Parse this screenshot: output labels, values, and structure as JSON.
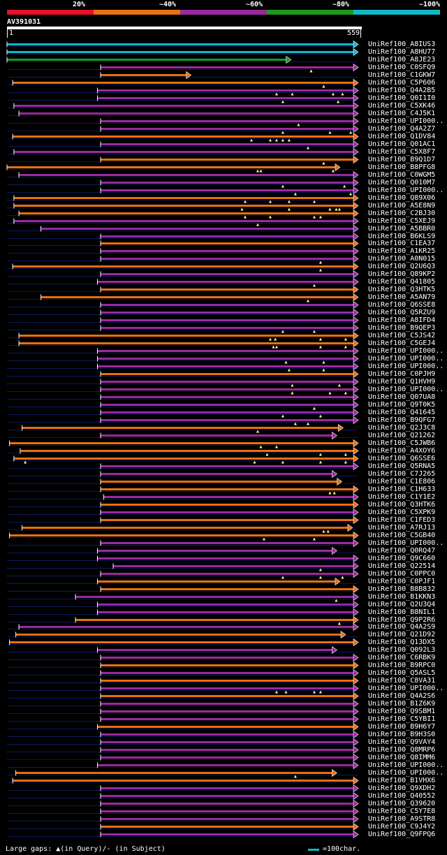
{
  "legend": {
    "items": [
      {
        "label": "20%",
        "color": "#e8102a"
      },
      {
        "label": "~40%",
        "color": "#e87010"
      },
      {
        "label": "~60%",
        "color": "#9a2a9e"
      },
      {
        "label": "~80%",
        "color": "#1a9a20"
      },
      {
        "label": "~100%",
        "color": "#10b8c4"
      }
    ]
  },
  "query": {
    "name": "AV391031",
    "start_label": "1",
    "end_label": "559"
  },
  "footer": {
    "text": "Large gaps: ▲(in Query)/- (in Subject)",
    "scale_text": "=100char."
  },
  "chart_data": {
    "type": "alignment-overview",
    "title": "AV391031",
    "query_length": 559,
    "hits": [
      {
        "name": "UniRef100_A8IUS3",
        "start": 1,
        "end": 559,
        "color": "#10b8c4",
        "marks": []
      },
      {
        "name": "UniRef100_A8HU77",
        "start": 1,
        "end": 559,
        "color": "#10b8c4",
        "marks": []
      },
      {
        "name": "UniRef100_A8JE23",
        "start": 1,
        "end": 452,
        "color": "#1a9a20",
        "marks": []
      },
      {
        "name": "UniRef100_C0SFQ9",
        "start": 150,
        "end": 559,
        "color": "#9a2a9e",
        "marks": [
          485
        ]
      },
      {
        "name": "UniRef100_C1GKW7",
        "start": 150,
        "end": 293,
        "color": "#e87010",
        "marks": []
      },
      {
        "name": "UniRef100_C5P606",
        "start": 10,
        "end": 559,
        "color": "#e87010",
        "marks": [
          505
        ]
      },
      {
        "name": "UniRef100_Q4A2B5",
        "start": 145,
        "end": 559,
        "color": "#9a2a9e",
        "marks": [
          430,
          455,
          520,
          535
        ]
      },
      {
        "name": "UniRef100_Q0I1I0",
        "start": 145,
        "end": 559,
        "color": "#9a2a9e",
        "marks": [
          440,
          528
        ]
      },
      {
        "name": "UniRef100_C5XK46",
        "start": 12,
        "end": 559,
        "color": "#9a2a9e",
        "marks": []
      },
      {
        "name": "UniRef100_C4J5K1",
        "start": 20,
        "end": 559,
        "color": "#9a2a9e",
        "marks": []
      },
      {
        "name": "UniRef100_UPI000..",
        "start": 150,
        "end": 559,
        "color": "#9a2a9e",
        "marks": [
          465
        ]
      },
      {
        "name": "UniRef100_Q4A2Z7",
        "start": 150,
        "end": 559,
        "color": "#9a2a9e",
        "marks": [
          440,
          515,
          548
        ]
      },
      {
        "name": "UniRef100_Q1DV84",
        "start": 10,
        "end": 559,
        "color": "#e87010",
        "marks": [
          390,
          420,
          430,
          440,
          450
        ]
      },
      {
        "name": "UniRef100_Q01AC1",
        "start": 150,
        "end": 559,
        "color": "#9a2a9e",
        "marks": [
          480
        ]
      },
      {
        "name": "UniRef100_C5X8F7",
        "start": 12,
        "end": 559,
        "color": "#9a2a9e",
        "marks": []
      },
      {
        "name": "UniRef100_B9Q1D7",
        "start": 150,
        "end": 559,
        "color": "#e87010",
        "marks": [
          505
        ]
      },
      {
        "name": "UniRef100_B8PFG8",
        "start": 1,
        "end": 530,
        "color": "#e87010",
        "marks": [
          400,
          405,
          520
        ]
      },
      {
        "name": "UniRef100_C0WGM5",
        "start": 20,
        "end": 559,
        "color": "#9a2a9e",
        "marks": []
      },
      {
        "name": "UniRef100_Q010M7",
        "start": 150,
        "end": 559,
        "color": "#9a2a9e",
        "marks": [
          440,
          538
        ]
      },
      {
        "name": "UniRef100_UPI000..",
        "start": 150,
        "end": 559,
        "color": "#9a2a9e",
        "marks": [
          460,
          548
        ]
      },
      {
        "name": "UniRef100_Q89X06",
        "start": 12,
        "end": 559,
        "color": "#e87010",
        "marks": [
          380,
          420,
          450,
          490
        ]
      },
      {
        "name": "UniRef100_A5E8N9",
        "start": 12,
        "end": 559,
        "color": "#e87010",
        "marks": [
          375,
          450,
          515,
          525,
          530
        ]
      },
      {
        "name": "UniRef100_C2BJ30",
        "start": 20,
        "end": 559,
        "color": "#e87010",
        "marks": [
          380,
          420,
          490,
          500
        ]
      },
      {
        "name": "UniRef100_C5XEJ9",
        "start": 12,
        "end": 559,
        "color": "#9a2a9e",
        "marks": [
          400
        ]
      },
      {
        "name": "UniRef100_A5BBR0",
        "start": 55,
        "end": 559,
        "color": "#9a2a9e",
        "marks": []
      },
      {
        "name": "UniRef100_B6KLS9",
        "start": 150,
        "end": 559,
        "color": "#9a2a9e",
        "marks": []
      },
      {
        "name": "UniRef100_C1EA37",
        "start": 150,
        "end": 559,
        "color": "#e87010",
        "marks": []
      },
      {
        "name": "UniRef100_A1KR25",
        "start": 150,
        "end": 559,
        "color": "#9a2a9e",
        "marks": []
      },
      {
        "name": "UniRef100_A0N015",
        "start": 150,
        "end": 559,
        "color": "#9a2a9e",
        "marks": [
          500
        ]
      },
      {
        "name": "UniRef100_Q2U6Q3",
        "start": 10,
        "end": 559,
        "color": "#e87010",
        "marks": [
          500
        ]
      },
      {
        "name": "UniRef100_Q89KP2",
        "start": 150,
        "end": 559,
        "color": "#9a2a9e",
        "marks": []
      },
      {
        "name": "UniRef100_Q41805",
        "start": 145,
        "end": 559,
        "color": "#9a2a9e",
        "marks": [
          490
        ]
      },
      {
        "name": "UniRef100_Q3HTK5",
        "start": 150,
        "end": 559,
        "color": "#e87010",
        "marks": []
      },
      {
        "name": "UniRef100_A5AN79",
        "start": 55,
        "end": 559,
        "color": "#e87010",
        "marks": [
          480
        ]
      },
      {
        "name": "UniRef100_Q6SSE8",
        "start": 150,
        "end": 559,
        "color": "#9a2a9e",
        "marks": []
      },
      {
        "name": "UniRef100_Q5RZU9",
        "start": 150,
        "end": 559,
        "color": "#9a2a9e",
        "marks": []
      },
      {
        "name": "UniRef100_A8IFD4",
        "start": 150,
        "end": 559,
        "color": "#9a2a9e",
        "marks": []
      },
      {
        "name": "UniRef100_B9QEP3",
        "start": 150,
        "end": 559,
        "color": "#9a2a9e",
        "marks": [
          440,
          490
        ]
      },
      {
        "name": "UniRef100_C5JS42",
        "start": 20,
        "end": 559,
        "color": "#e87010",
        "marks": [
          420,
          428,
          500,
          540
        ]
      },
      {
        "name": "UniRef100_C5GEJ4",
        "start": 20,
        "end": 559,
        "color": "#e87010",
        "marks": [
          425,
          430,
          500,
          540
        ]
      },
      {
        "name": "UniRef100_UPI000..",
        "start": 145,
        "end": 559,
        "color": "#9a2a9e",
        "marks": []
      },
      {
        "name": "UniRef100_UPI000..",
        "start": 145,
        "end": 559,
        "color": "#9a2a9e",
        "marks": [
          445,
          505
        ]
      },
      {
        "name": "UniRef100_UPI000..",
        "start": 145,
        "end": 559,
        "color": "#9a2a9e",
        "marks": [
          450,
          505
        ]
      },
      {
        "name": "UniRef100_C0PJH9",
        "start": 150,
        "end": 559,
        "color": "#e87010",
        "marks": []
      },
      {
        "name": "UniRef100_Q1HVH9",
        "start": 150,
        "end": 559,
        "color": "#9a2a9e",
        "marks": [
          455,
          530
        ]
      },
      {
        "name": "UniRef100_UPI000..",
        "start": 150,
        "end": 559,
        "color": "#9a2a9e",
        "marks": [
          455,
          515,
          540
        ]
      },
      {
        "name": "UniRef100_Q07UA8",
        "start": 150,
        "end": 559,
        "color": "#9a2a9e",
        "marks": []
      },
      {
        "name": "UniRef100_Q9T0K5",
        "start": 150,
        "end": 559,
        "color": "#9a2a9e",
        "marks": [
          490
        ]
      },
      {
        "name": "UniRef100_Q41645",
        "start": 150,
        "end": 559,
        "color": "#9a2a9e",
        "marks": [
          440,
          500
        ]
      },
      {
        "name": "UniRef100_B9QFG7",
        "start": 150,
        "end": 559,
        "color": "#9a2a9e",
        "marks": [
          460,
          480
        ]
      },
      {
        "name": "UniRef100_Q2J3C8",
        "start": 25,
        "end": 535,
        "color": "#e87010",
        "marks": [
          400
        ]
      },
      {
        "name": "UniRef100_Q21262",
        "start": 150,
        "end": 525,
        "color": "#9a2a9e",
        "marks": []
      },
      {
        "name": "UniRef100_C5JWB6",
        "start": 5,
        "end": 559,
        "color": "#e87010",
        "marks": [
          405,
          430
        ]
      },
      {
        "name": "UniRef100_A4XOY6",
        "start": 22,
        "end": 559,
        "color": "#e87010",
        "marks": [
          415,
          500,
          540
        ]
      },
      {
        "name": "UniRef100_Q6SSE6",
        "start": 12,
        "end": 559,
        "color": "#e87010",
        "marks": [
          30,
          395,
          440,
          500,
          540
        ]
      },
      {
        "name": "UniRef100_Q5RNA5",
        "start": 150,
        "end": 559,
        "color": "#9a2a9e",
        "marks": []
      },
      {
        "name": "UniRef100_C7J265",
        "start": 150,
        "end": 525,
        "color": "#9a2a9e",
        "marks": []
      },
      {
        "name": "UniRef100_C1E806",
        "start": 150,
        "end": 533,
        "color": "#e87010",
        "marks": []
      },
      {
        "name": "UniRef100_C1H633",
        "start": 150,
        "end": 559,
        "color": "#e87010",
        "marks": [
          515,
          522
        ]
      },
      {
        "name": "UniRef100_C1Y1E2",
        "start": 155,
        "end": 559,
        "color": "#9a2a9e",
        "marks": []
      },
      {
        "name": "UniRef100_Q3HTK6",
        "start": 150,
        "end": 559,
        "color": "#e87010",
        "marks": []
      },
      {
        "name": "UniRef100_C5XPK9",
        "start": 150,
        "end": 559,
        "color": "#9a2a9e",
        "marks": []
      },
      {
        "name": "UniRef100_C1FED3",
        "start": 150,
        "end": 559,
        "color": "#e87010",
        "marks": []
      },
      {
        "name": "UniRef100_A7RJ13",
        "start": 25,
        "end": 550,
        "color": "#e87010",
        "marks": [
          505,
          512
        ]
      },
      {
        "name": "UniRef100_C5GB40",
        "start": 5,
        "end": 559,
        "color": "#e87010",
        "marks": [
          410,
          490
        ]
      },
      {
        "name": "UniRef100_UPI000..",
        "start": 150,
        "end": 559,
        "color": "#9a2a9e",
        "marks": []
      },
      {
        "name": "UniRef100_Q0RQ47",
        "start": 145,
        "end": 525,
        "color": "#9a2a9e",
        "marks": []
      },
      {
        "name": "UniRef100_Q9C660",
        "start": 145,
        "end": 559,
        "color": "#9a2a9e",
        "marks": []
      },
      {
        "name": "UniRef100_Q22514",
        "start": 170,
        "end": 559,
        "color": "#9a2a9e",
        "marks": [
          500
        ]
      },
      {
        "name": "UniRef100_C0PPC0",
        "start": 150,
        "end": 559,
        "color": "#9a2a9e",
        "marks": [
          440,
          500,
          535
        ]
      },
      {
        "name": "UniRef100_C0PJF1",
        "start": 145,
        "end": 530,
        "color": "#e87010",
        "marks": []
      },
      {
        "name": "UniRef100_B8B832",
        "start": 150,
        "end": 559,
        "color": "#e87010",
        "marks": []
      },
      {
        "name": "UniRef100_B1KKN3",
        "start": 110,
        "end": 559,
        "color": "#9a2a9e",
        "marks": [
          525
        ]
      },
      {
        "name": "UniRef100_Q2U3Q4",
        "start": 145,
        "end": 559,
        "color": "#9a2a9e",
        "marks": []
      },
      {
        "name": "UniRef100_B8NIL1",
        "start": 145,
        "end": 559,
        "color": "#9a2a9e",
        "marks": []
      },
      {
        "name": "UniRef100_Q9P2R6",
        "start": 110,
        "end": 559,
        "color": "#e87010",
        "marks": [
          530
        ]
      },
      {
        "name": "UniRef100_Q4A2S9",
        "start": 20,
        "end": 559,
        "color": "#9a2a9e",
        "marks": []
      },
      {
        "name": "UniRef100_Q21D92",
        "start": 15,
        "end": 539,
        "color": "#e87010",
        "marks": []
      },
      {
        "name": "UniRef100_Q13DX5",
        "start": 5,
        "end": 559,
        "color": "#e87010",
        "marks": []
      },
      {
        "name": "UniRef100_Q092L3",
        "start": 145,
        "end": 525,
        "color": "#9a2a9e",
        "marks": []
      },
      {
        "name": "UniRef100_C6RBK9",
        "start": 150,
        "end": 559,
        "color": "#9a2a9e",
        "marks": []
      },
      {
        "name": "UniRef100_B9RPC0",
        "start": 150,
        "end": 559,
        "color": "#e87010",
        "marks": []
      },
      {
        "name": "UniRef100_Q5ASL5",
        "start": 150,
        "end": 559,
        "color": "#9a2a9e",
        "marks": []
      },
      {
        "name": "UniRef100_C8VA31",
        "start": 150,
        "end": 559,
        "color": "#e87010",
        "marks": []
      },
      {
        "name": "UniRef100_UPI000..",
        "start": 150,
        "end": 559,
        "color": "#9a2a9e",
        "marks": [
          430,
          445,
          490,
          500
        ]
      },
      {
        "name": "UniRef100_Q4A2S6",
        "start": 150,
        "end": 559,
        "color": "#e87010",
        "marks": []
      },
      {
        "name": "UniRef100_B1Z6K9",
        "start": 150,
        "end": 559,
        "color": "#9a2a9e",
        "marks": []
      },
      {
        "name": "UniRef100_Q9SBM1",
        "start": 150,
        "end": 559,
        "color": "#9a2a9e",
        "marks": []
      },
      {
        "name": "UniRef100_C5YBI1",
        "start": 150,
        "end": 559,
        "color": "#9a2a9e",
        "marks": []
      },
      {
        "name": "UniRef100_B9H6Y7",
        "start": 145,
        "end": 559,
        "color": "#e87010",
        "marks": []
      },
      {
        "name": "UniRef100_B9H3S0",
        "start": 150,
        "end": 559,
        "color": "#9a2a9e",
        "marks": []
      },
      {
        "name": "UniRef100_Q9VAY4",
        "start": 150,
        "end": 559,
        "color": "#9a2a9e",
        "marks": []
      },
      {
        "name": "UniRef100_Q8MRP6",
        "start": 150,
        "end": 559,
        "color": "#9a2a9e",
        "marks": []
      },
      {
        "name": "UniRef100_Q8IMM6",
        "start": 150,
        "end": 559,
        "color": "#9a2a9e",
        "marks": []
      },
      {
        "name": "UniRef100_UPI000..",
        "start": 145,
        "end": 559,
        "color": "#9a2a9e",
        "marks": []
      },
      {
        "name": "UniRef100_UPI000..",
        "start": 15,
        "end": 525,
        "color": "#e87010",
        "marks": [
          460
        ]
      },
      {
        "name": "UniRef100_B1VHX6",
        "start": 10,
        "end": 559,
        "color": "#e87010",
        "marks": []
      },
      {
        "name": "UniRef100_Q9XDH2",
        "start": 150,
        "end": 559,
        "color": "#9a2a9e",
        "marks": []
      },
      {
        "name": "UniRef100_Q40552",
        "start": 150,
        "end": 559,
        "color": "#9a2a9e",
        "marks": []
      },
      {
        "name": "UniRef100_Q39620",
        "start": 150,
        "end": 559,
        "color": "#9a2a9e",
        "marks": []
      },
      {
        "name": "UniRef100_C5Y7E8",
        "start": 150,
        "end": 559,
        "color": "#9a2a9e",
        "marks": []
      },
      {
        "name": "UniRef100_A9STR8",
        "start": 150,
        "end": 559,
        "color": "#9a2a9e",
        "marks": []
      },
      {
        "name": "UniRef100_C9J4Y2",
        "start": 150,
        "end": 559,
        "color": "#e87010",
        "marks": []
      },
      {
        "name": "UniRef100_Q9FPQ6",
        "start": 150,
        "end": 559,
        "color": "#9a2a9e",
        "marks": []
      }
    ]
  }
}
